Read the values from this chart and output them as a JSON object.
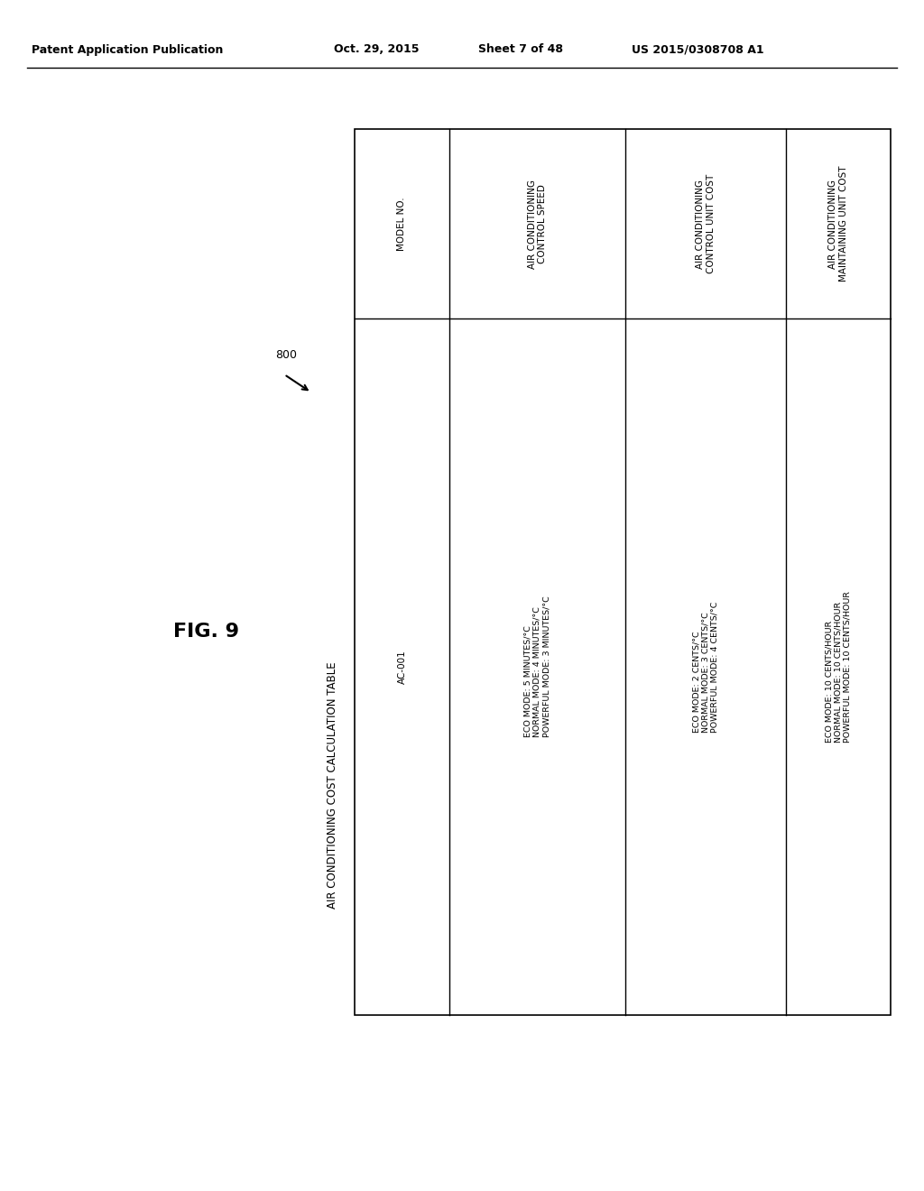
{
  "bg_color": "#ffffff",
  "header_top": "Patent Application Publication",
  "header_date": "Oct. 29, 2015",
  "header_sheet": "Sheet 7 of 48",
  "header_patent": "US 2015/0308708 A1",
  "fig_label": "FIG. 9",
  "table_title": "AIR CONDITIONING COST CALCULATION TABLE",
  "ref_number": "800",
  "col_headers": [
    "MODEL NO.",
    "AIR CONDITIONING\nCONTROL SPEED",
    "AIR CONDITIONING\nCONTROL UNIT COST",
    "AIR CONDITIONING\nMAINTAINING UNIT COST"
  ],
  "row_model": "AC-001",
  "col1_data": "ECO MODE: 5 MINUTES/°C\nNORMAL MODE: 4 MINUTES/°C\nPOWERFUL MODE: 3 MINUTES/°C",
  "col2_data": "ECO MODE: 2 CENTS/°C\nNORMAL MODE: 3 CENTS/°C\nPOWERFUL MODE: 4 CENTS/°C",
  "col3_data": "ECO MODE: 10 CENTS/HOUR\nNORMAL MODE: 10 CENTS/HOUR\nPOWERFUL MODE: 10 CENTS/HOUR",
  "font_color": "#000000",
  "line_color": "#000000",
  "font_size_header": 9,
  "font_size_table_header": 7.5,
  "font_size_table_data": 6.8,
  "font_size_fig": 16,
  "font_size_title": 8.5
}
